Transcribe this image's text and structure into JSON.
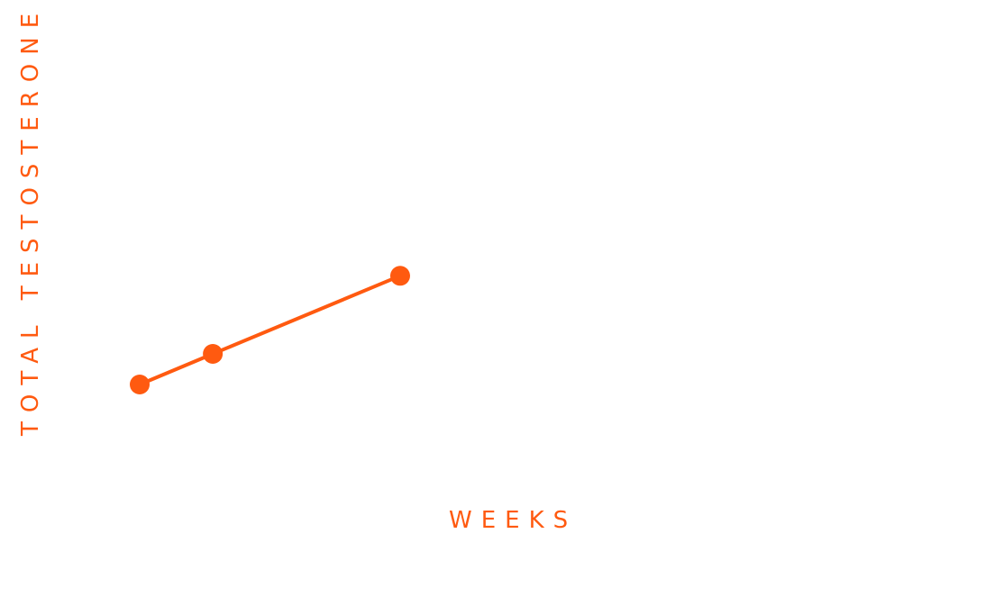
{
  "chart_data": {
    "type": "line",
    "title": "",
    "xlabel": "WEEKS",
    "ylabel": "TOTAL TESTOSTERONE",
    "grid": false,
    "legend": "none",
    "accent_color": "#ff5a10",
    "series": [
      {
        "points": [
          {
            "x": 0,
            "y": 0
          },
          {
            "x": 2,
            "y": 1
          },
          {
            "x": 7.125,
            "y": 3.55
          }
        ]
      }
    ]
  }
}
